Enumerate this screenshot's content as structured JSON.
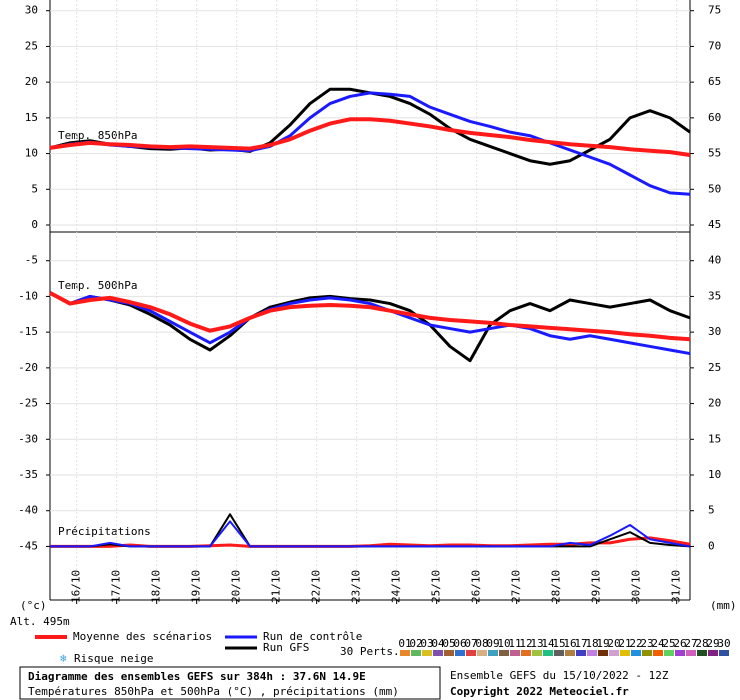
{
  "chart_data": {
    "type": "line",
    "y_unit": "(°c)",
    "y2_unit": "(mm)",
    "altitude": "Alt. 495m",
    "panel_labels": [
      "Temp. 850hPa",
      "Temp. 500hPa",
      "Précipitations"
    ],
    "x": [
      0,
      12,
      24,
      36,
      48,
      60,
      72,
      84,
      96,
      108,
      120,
      132,
      144,
      156,
      168,
      180,
      192,
      204,
      216,
      228,
      240,
      252,
      264,
      276,
      288,
      300,
      312,
      324,
      336,
      348,
      360,
      372,
      384
    ],
    "xlim": [
      0,
      384
    ],
    "xticks": [
      {
        "value": 16,
        "label": "16/10"
      },
      {
        "value": 40,
        "label": "17/10"
      },
      {
        "value": 64,
        "label": "18/10"
      },
      {
        "value": 88,
        "label": "19/10"
      },
      {
        "value": 112,
        "label": "20/10"
      },
      {
        "value": 136,
        "label": "21/10"
      },
      {
        "value": 160,
        "label": "22/10"
      },
      {
        "value": 184,
        "label": "23/10"
      },
      {
        "value": 208,
        "label": "24/10"
      },
      {
        "value": 232,
        "label": "25/10"
      },
      {
        "value": 256,
        "label": "26/10"
      },
      {
        "value": 280,
        "label": "27/10"
      },
      {
        "value": 304,
        "label": "28/10"
      },
      {
        "value": 328,
        "label": "29/10"
      },
      {
        "value": 352,
        "label": "30/10"
      },
      {
        "value": 376,
        "label": "31/10"
      }
    ],
    "ylim": [
      -52.5,
      31.5
    ],
    "yticks": [
      30,
      25,
      20,
      15,
      10,
      5,
      0,
      -5,
      -10,
      -15,
      -20,
      -25,
      -30,
      -35,
      -40,
      -45
    ],
    "y2lim": [
      -7.5,
      76.5
    ],
    "y2ticks": [
      75,
      70,
      65,
      60,
      55,
      50,
      45,
      40,
      35,
      30,
      25,
      20,
      15,
      10,
      5,
      0
    ],
    "grid": true,
    "series": [
      {
        "name": "Moyenne des scénarios",
        "color": "#ff1a1a",
        "width": 4,
        "values": [
          10.8,
          11.2,
          11.5,
          11.3,
          11.2,
          11,
          10.9,
          11,
          10.9,
          10.8,
          10.7,
          11.2,
          12,
          13.2,
          14.2,
          14.8,
          14.8,
          14.6,
          14.2,
          13.8,
          13.3,
          12.9,
          12.6,
          12.3,
          11.9,
          11.6,
          11.3,
          11.1,
          10.9,
          10.6,
          10.4,
          10.2,
          9.8
        ]
      },
      {
        "name": "Run de contrôle",
        "color": "#1a1aff",
        "width": 3,
        "values": [
          10.8,
          11.3,
          11.6,
          11.2,
          11,
          10.9,
          10.8,
          10.7,
          10.6,
          10.5,
          10.4,
          11,
          12.5,
          15,
          17,
          18,
          18.5,
          18.3,
          18,
          16.5,
          15.5,
          14.5,
          13.8,
          13,
          12.5,
          11.5,
          10.5,
          9.5,
          8.5,
          7,
          5.5,
          4.5,
          4.3
        ]
      },
      {
        "name": "Run GFS",
        "color": "#000000",
        "width": 3,
        "values": [
          10.8,
          11.5,
          11.8,
          11.3,
          11,
          10.7,
          10.6,
          10.8,
          10.5,
          10.6,
          10.3,
          11.5,
          14,
          17,
          19,
          19,
          18.5,
          18,
          17,
          15.5,
          13.5,
          12,
          11,
          10,
          9,
          8.5,
          9,
          10.5,
          12,
          15,
          16,
          15,
          13
        ]
      },
      {
        "color": "#ff1a1a",
        "width": 4,
        "values": [
          -9.5,
          -11,
          -10.5,
          -10.2,
          -10.8,
          -11.5,
          -12.5,
          -13.8,
          -14.8,
          -14.2,
          -13,
          -12,
          -11.5,
          -11.3,
          -11.2,
          -11.3,
          -11.5,
          -12,
          -12.5,
          -13,
          -13.3,
          -13.5,
          -13.7,
          -14,
          -14.2,
          -14.4,
          -14.6,
          -14.8,
          -15,
          -15.3,
          -15.5,
          -15.8,
          -16
        ]
      },
      {
        "color": "#1a1aff",
        "width": 3,
        "values": [
          -9.5,
          -11,
          -10,
          -10.5,
          -11,
          -12,
          -13.5,
          -15,
          -16.5,
          -15,
          -13,
          -11.8,
          -11,
          -10.5,
          -10.2,
          -10.5,
          -11,
          -12,
          -13,
          -14,
          -14.5,
          -15,
          -14.5,
          -14,
          -14.5,
          -15.5,
          -16,
          -15.5,
          -16,
          -16.5,
          -17,
          -17.5,
          -18
        ]
      },
      {
        "color": "#000000",
        "width": 3,
        "values": [
          -9.5,
          -11,
          -10,
          -10.5,
          -11.2,
          -12.5,
          -14,
          -16,
          -17.5,
          -15.5,
          -13,
          -11.5,
          -10.8,
          -10.2,
          -10,
          -10.3,
          -10.5,
          -11,
          -12,
          -14,
          -17,
          -19,
          -14,
          -12,
          -11,
          -12,
          -10.5,
          -11,
          -11.5,
          -11,
          -10.5,
          -12,
          -13
        ]
      },
      {
        "color": "#1a1aff",
        "width": 2,
        "axis": "y2",
        "values": [
          0,
          0,
          0,
          0.5,
          0,
          0,
          0,
          0,
          0,
          3.5,
          0,
          0,
          0,
          0,
          0,
          0,
          0,
          0,
          0,
          0,
          0,
          0,
          0,
          0,
          0,
          0,
          0.5,
          0.2,
          1.5,
          3,
          1,
          0.5,
          0
        ]
      },
      {
        "color": "#000000",
        "width": 2,
        "axis": "y2",
        "values": [
          0,
          0,
          0,
          0.3,
          0,
          0,
          0,
          0,
          0,
          4.5,
          0,
          0,
          0,
          0,
          0,
          0,
          0,
          0,
          0,
          0,
          0,
          0,
          0,
          0,
          0,
          0,
          0,
          0,
          1,
          2,
          0.5,
          0.2,
          0
        ]
      },
      {
        "color": "#ff1a1a",
        "width": 3,
        "axis": "y2",
        "values": [
          0,
          0,
          0,
          0,
          0.2,
          0,
          0,
          0,
          0.1,
          0.2,
          0,
          0,
          0,
          0,
          0,
          0,
          0.1,
          0.3,
          0.2,
          0.1,
          0.2,
          0.2,
          0.1,
          0.1,
          0.2,
          0.3,
          0.3,
          0.5,
          0.5,
          1,
          1.2,
          0.8,
          0.3
        ]
      }
    ],
    "snow_risk": "Risque neige",
    "perturbations": {
      "title": "30 Perts.",
      "items": [
        {
          "label": "01",
          "color": "#e8872a"
        },
        {
          "label": "02",
          "color": "#5fb85f"
        },
        {
          "label": "03",
          "color": "#d8c020"
        },
        {
          "label": "04",
          "color": "#8050b0"
        },
        {
          "label": "05",
          "color": "#a06030"
        },
        {
          "label": "06",
          "color": "#3070d0"
        },
        {
          "label": "07",
          "color": "#e04040"
        },
        {
          "label": "08",
          "color": "#d8b080"
        },
        {
          "label": "09",
          "color": "#40a0c0"
        },
        {
          "label": "10",
          "color": "#806040"
        },
        {
          "label": "11",
          "color": "#c06090"
        },
        {
          "label": "12",
          "color": "#e07020"
        },
        {
          "label": "13",
          "color": "#a0c040"
        },
        {
          "label": "14",
          "color": "#20c080"
        },
        {
          "label": "15",
          "color": "#606060"
        },
        {
          "label": "16",
          "color": "#b08040"
        },
        {
          "label": "17",
          "color": "#4040c0"
        },
        {
          "label": "18",
          "color": "#c080e0"
        },
        {
          "label": "19",
          "color": "#703000"
        },
        {
          "label": "20",
          "color": "#d0a0d0"
        },
        {
          "label": "21",
          "color": "#e0c000"
        },
        {
          "label": "22",
          "color": "#2090e0"
        },
        {
          "label": "23",
          "color": "#909000"
        },
        {
          "label": "24",
          "color": "#f06000"
        },
        {
          "label": "25",
          "color": "#60d060"
        },
        {
          "label": "26",
          "color": "#a040d0"
        },
        {
          "label": "27",
          "color": "#d060c0"
        },
        {
          "label": "28",
          "color": "#205020"
        },
        {
          "label": "29",
          "color": "#802080"
        },
        {
          "label": "30",
          "color": "#3050a0"
        }
      ]
    },
    "info": [
      "Diagramme des ensembles GEFS sur 384h : 37.6N 14.9E",
      "Températures 850hPa et 500hPa (°C) , précipitations (mm)"
    ],
    "run": "Ensemble GEFS du 15/10/2022 - 12Z",
    "copyright": "Copyright 2022 Meteociel.fr"
  }
}
